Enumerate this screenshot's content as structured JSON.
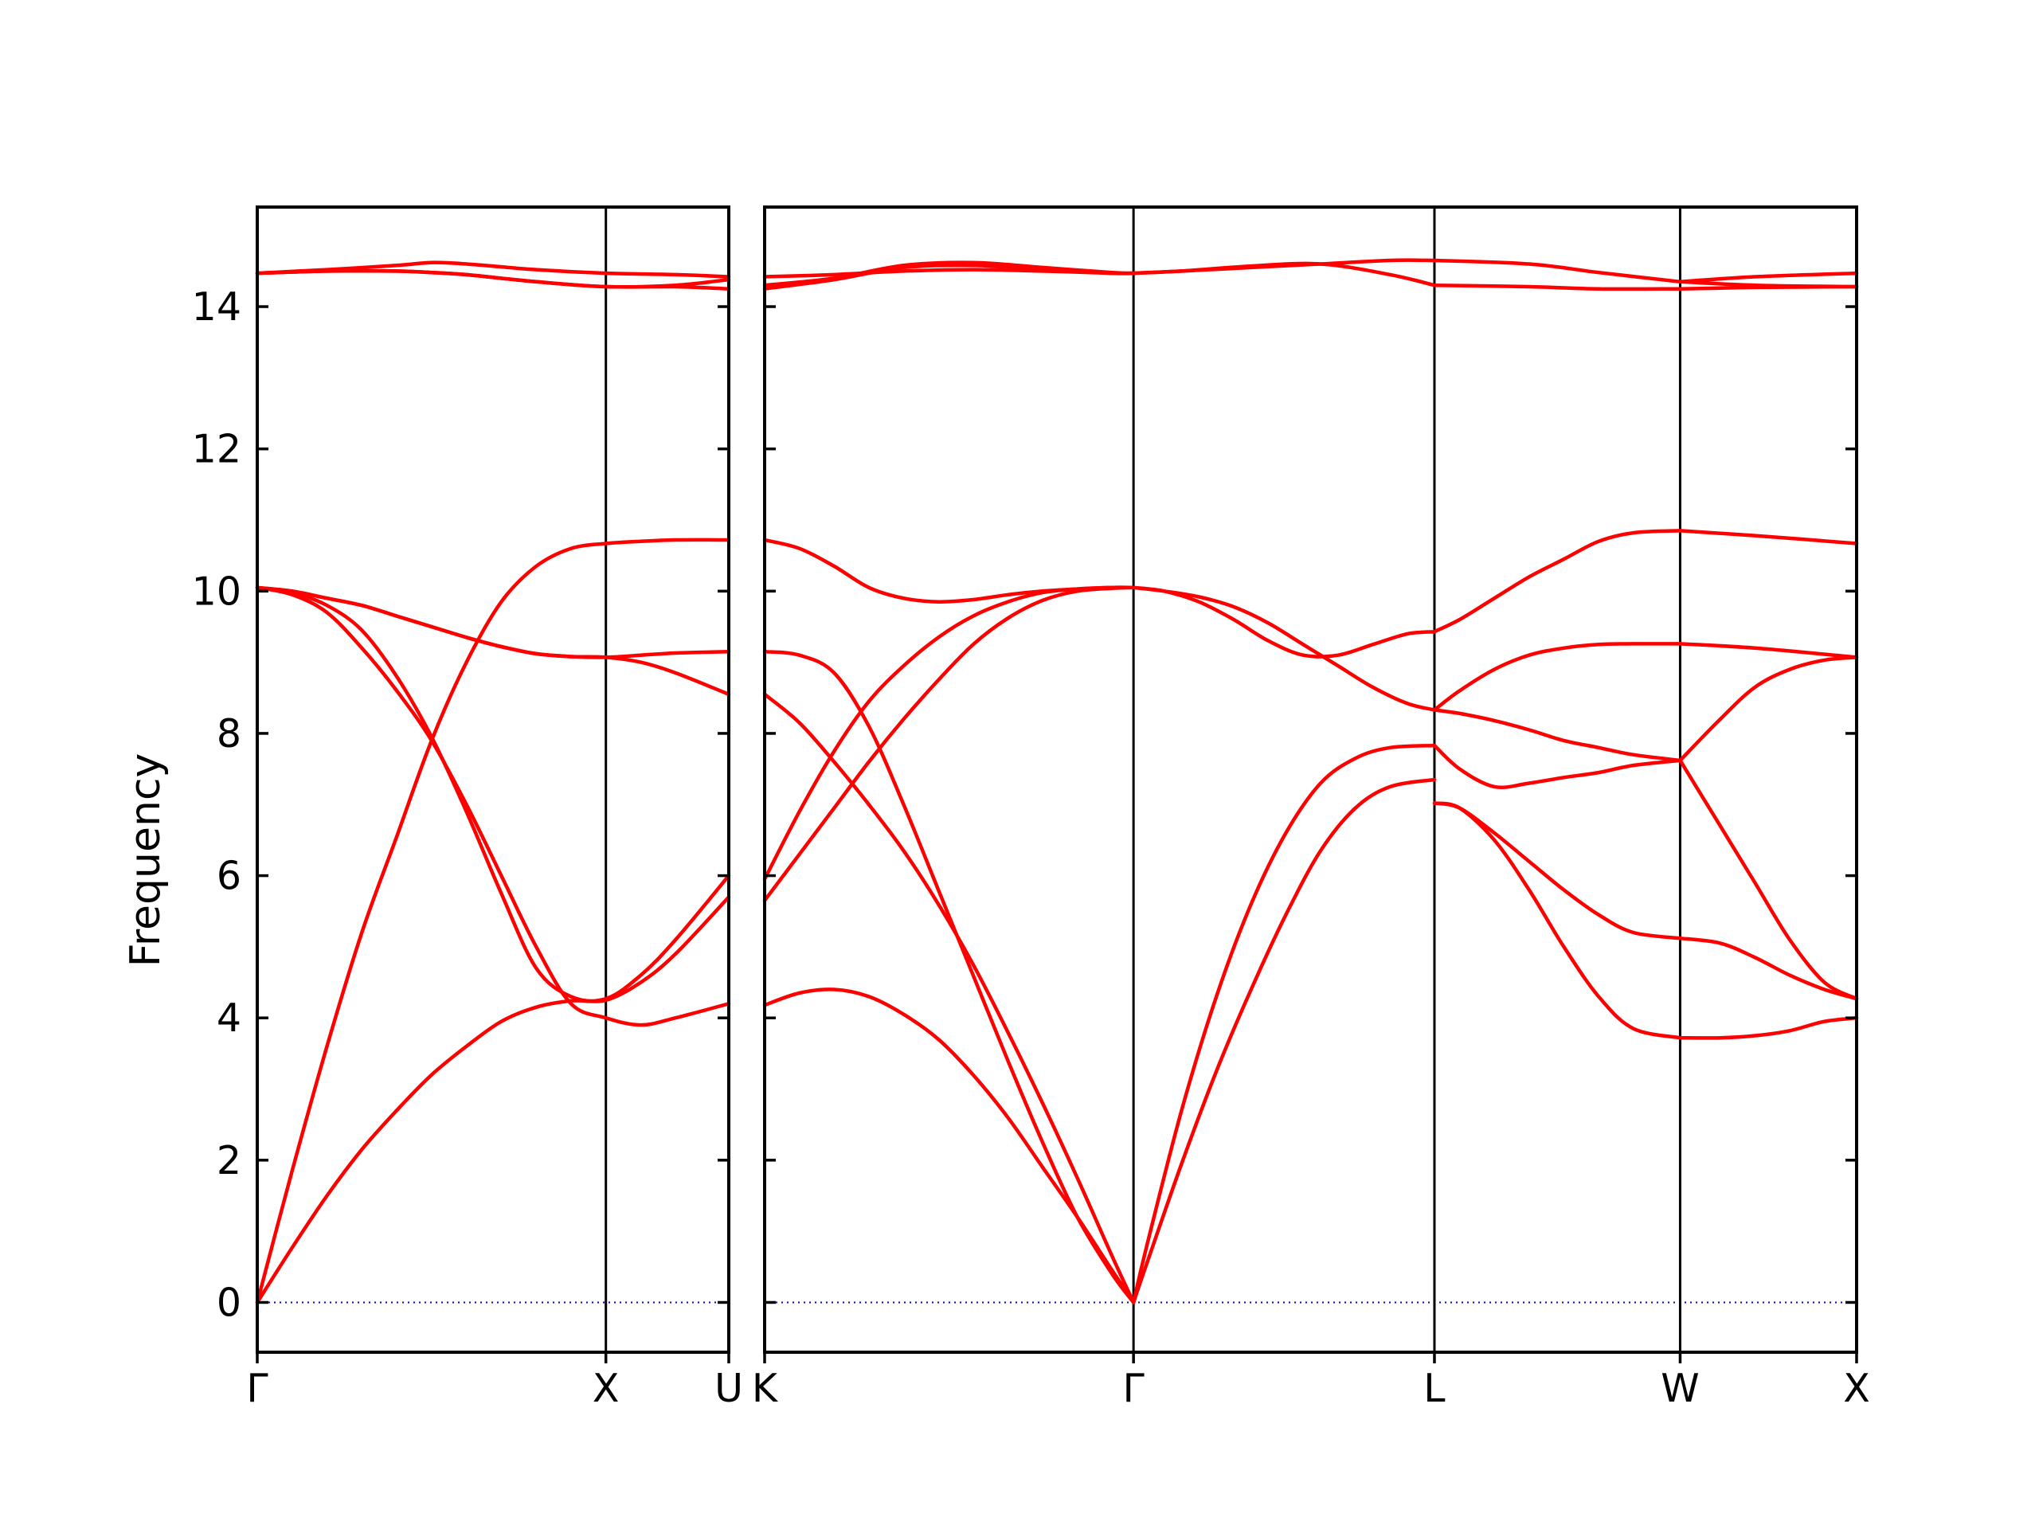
{
  "chart_data": {
    "type": "line",
    "title": "",
    "ylabel": "Frequency",
    "ylim": [
      -0.7,
      15.4
    ],
    "yticks": [
      0,
      2,
      4,
      6,
      8,
      10,
      12,
      14
    ],
    "grid": false,
    "legend": "none",
    "colors": {
      "bands": "#ff0000",
      "zero_line": "#0000cc",
      "axes": "#000000"
    },
    "segments": [
      {
        "name": "Γ-X-U",
        "xlim": [
          0,
          1.3525
        ],
        "kpoints": [
          {
            "label": "Γ",
            "x": 0
          },
          {
            "label": "X",
            "x": 1.0
          }
        ],
        "end_label": "U",
        "bands": [
          {
            "x": [
              0,
              0.1,
              0.2,
              0.3,
              0.4,
              0.5,
              0.6,
              0.7,
              0.8,
              0.9,
              1.0,
              1.1,
              1.2,
              1.3525
            ],
            "y": [
              0,
              0.77,
              1.5,
              2.15,
              2.7,
              3.2,
              3.6,
              3.95,
              4.15,
              4.24,
              4.25,
              4.5,
              4.9,
              5.7
            ]
          },
          {
            "x": [
              0,
              0.1,
              0.2,
              0.3,
              0.4,
              0.5,
              0.6,
              0.7,
              0.8,
              0.9,
              1.0,
              1.1,
              1.2,
              1.3525
            ],
            "y": [
              0,
              1.85,
              3.6,
              5.2,
              6.55,
              7.9,
              9.0,
              9.85,
              10.35,
              10.6,
              10.67,
              10.7,
              10.72,
              10.72
            ]
          },
          {
            "x": [
              0,
              0.1,
              0.2,
              0.3,
              0.4,
              0.5,
              0.6,
              0.7,
              0.8,
              0.9,
              1.0,
              1.1,
              1.2,
              1.3525
            ],
            "y": [
              10.05,
              9.95,
              9.7,
              9.2,
              8.6,
              7.9,
              7.0,
              6.0,
              5.0,
              4.2,
              4.0,
              3.9,
              4.0,
              4.2
            ]
          },
          {
            "x": [
              0,
              0.1,
              0.2,
              0.3,
              0.4,
              0.5,
              0.6,
              0.7,
              0.8,
              0.9,
              1.0,
              1.1,
              1.2,
              1.3525
            ],
            "y": [
              10.05,
              10.0,
              9.9,
              9.8,
              9.65,
              9.5,
              9.35,
              9.22,
              9.12,
              9.08,
              9.07,
              9.0,
              8.85,
              8.55
            ]
          },
          {
            "x": [
              0,
              0.1,
              0.2,
              0.3,
              0.4,
              0.5,
              0.6,
              0.7,
              0.8,
              0.9,
              1.0,
              1.1,
              1.2,
              1.3525
            ],
            "y": [
              10.05,
              10.0,
              9.9,
              9.8,
              9.65,
              9.5,
              9.35,
              9.22,
              9.12,
              9.08,
              9.07,
              9.1,
              9.13,
              9.15
            ]
          },
          {
            "x": [
              0,
              0.1,
              0.2,
              0.3,
              0.4,
              0.5,
              0.6,
              0.7,
              0.8,
              0.9,
              1.0,
              1.1,
              1.2,
              1.3525
            ],
            "y": [
              10.05,
              9.98,
              9.8,
              9.45,
              8.8,
              7.95,
              6.9,
              5.75,
              4.7,
              4.3,
              4.27,
              4.6,
              5.1,
              6.0
            ]
          },
          {
            "x": [
              0,
              0.2,
              0.4,
              0.5,
              0.6,
              0.8,
              1.0,
              1.2,
              1.3525
            ],
            "y": [
              14.47,
              14.52,
              14.58,
              14.62,
              14.6,
              14.52,
              14.47,
              14.45,
              14.42
            ]
          },
          {
            "x": [
              0,
              0.2,
              0.4,
              0.5,
              0.6,
              0.8,
              1.0,
              1.2,
              1.3525
            ],
            "y": [
              14.47,
              14.5,
              14.5,
              14.48,
              14.45,
              14.35,
              14.28,
              14.28,
              14.25
            ]
          },
          {
            "x": [
              0,
              0.2,
              0.4,
              0.5,
              0.6,
              0.8,
              1.0,
              1.2,
              1.3525
            ],
            "y": [
              14.47,
              14.5,
              14.5,
              14.48,
              14.45,
              14.35,
              14.28,
              14.3,
              14.38
            ]
          }
        ]
      },
      {
        "name": "K-Γ-L-W-X",
        "xlim": [
          0,
          3.1425
        ],
        "kpoints": [
          {
            "label": "K",
            "x": 0
          },
          {
            "label": "Γ",
            "x": 1.0616
          },
          {
            "label": "L",
            "x": 1.9276
          },
          {
            "label": "W",
            "x": 2.6347
          },
          {
            "label": "X",
            "x": 3.1425
          }
        ],
        "bands": [
          {
            "x": [
              0,
              0.1,
              0.2,
              0.3,
              0.4,
              0.5,
              0.6,
              0.7,
              0.8,
              0.9,
              1.0,
              1.0616
            ],
            "y": [
              4.18,
              4.35,
              4.4,
              4.3,
              4.05,
              3.7,
              3.2,
              2.6,
              1.9,
              1.2,
              0.45,
              0
            ]
          },
          {
            "x": [
              0,
              0.1,
              0.2,
              0.3,
              0.4,
              0.5,
              0.6,
              0.7,
              0.8,
              0.9,
              1.0,
              1.0616
            ],
            "y": [
              8.55,
              8.15,
              7.6,
              7.0,
              6.35,
              5.6,
              4.75,
              3.8,
              2.8,
              1.75,
              0.65,
              0
            ]
          },
          {
            "x": [
              0,
              0.1,
              0.2,
              0.3,
              0.4,
              0.5,
              0.6,
              0.7,
              0.8,
              0.9,
              1.0,
              1.0616
            ],
            "y": [
              9.15,
              9.1,
              8.85,
              8.1,
              7.0,
              5.8,
              4.6,
              3.4,
              2.25,
              1.2,
              0.4,
              0
            ]
          },
          {
            "x": [
              0,
              0.1,
              0.2,
              0.3,
              0.4,
              0.5,
              0.6,
              0.7,
              0.8,
              0.9,
              1.0,
              1.0616
            ],
            "y": [
              5.65,
              6.3,
              6.95,
              7.6,
              8.2,
              8.75,
              9.25,
              9.62,
              9.87,
              10.0,
              10.04,
              10.05
            ]
          },
          {
            "x": [
              0,
              0.1,
              0.2,
              0.3,
              0.4,
              0.5,
              0.6,
              0.7,
              0.8,
              0.9,
              1.0,
              1.0616
            ],
            "y": [
              5.95,
              6.9,
              7.75,
              8.45,
              8.95,
              9.35,
              9.65,
              9.85,
              9.98,
              10.03,
              10.05,
              10.05
            ]
          },
          {
            "x": [
              0,
              0.1,
              0.2,
              0.3,
              0.4,
              0.5,
              0.6,
              0.7,
              0.8,
              0.9,
              1.0,
              1.0616
            ],
            "y": [
              10.72,
              10.6,
              10.35,
              10.05,
              9.9,
              9.85,
              9.88,
              9.95,
              10.0,
              10.03,
              10.05,
              10.05
            ]
          },
          {
            "x": [
              0,
              0.2,
              0.4,
              0.6,
              0.8,
              1.0,
              1.0616
            ],
            "y": [
              14.3,
              14.4,
              14.58,
              14.62,
              14.55,
              14.48,
              14.47
            ]
          },
          {
            "x": [
              0,
              0.2,
              0.4,
              0.6,
              0.8,
              1.0,
              1.0616
            ],
            "y": [
              14.25,
              14.38,
              14.55,
              14.58,
              14.52,
              14.47,
              14.47
            ]
          },
          {
            "x": [
              0,
              0.2,
              0.4,
              0.6,
              0.8,
              1.0,
              1.0616
            ],
            "y": [
              14.42,
              14.45,
              14.5,
              14.52,
              14.5,
              14.47,
              14.47
            ]
          },
          {
            "x": [
              1.0616,
              1.1,
              1.2,
              1.3,
              1.4,
              1.5,
              1.6,
              1.7,
              1.8,
              1.9276
            ],
            "y": [
              0,
              0.55,
              1.95,
              3.25,
              4.4,
              5.45,
              6.35,
              6.95,
              7.25,
              7.35
            ]
          },
          {
            "x": [
              1.0616,
              1.1,
              1.2,
              1.3,
              1.4,
              1.5,
              1.6,
              1.7,
              1.8,
              1.9276
            ],
            "y": [
              0,
              0.8,
              2.7,
              4.3,
              5.6,
              6.6,
              7.3,
              7.65,
              7.8,
              7.83
            ]
          },
          {
            "x": [
              1.0616,
              1.15,
              1.25,
              1.35,
              1.45,
              1.55,
              1.65,
              1.75,
              1.85,
              1.9276
            ],
            "y": [
              10.05,
              10.0,
              9.85,
              9.6,
              9.3,
              9.1,
              9.1,
              9.25,
              9.4,
              9.43
            ]
          },
          {
            "x": [
              1.0616,
              1.15,
              1.25,
              1.35,
              1.45,
              1.55,
              1.65,
              1.75,
              1.85,
              1.9276
            ],
            "y": [
              10.05,
              10.0,
              9.92,
              9.78,
              9.55,
              9.25,
              8.95,
              8.65,
              8.42,
              8.33
            ]
          },
          {
            "x": [
              1.0616,
              1.2,
              1.4,
              1.6,
              1.8,
              1.9276
            ],
            "y": [
              14.47,
              14.5,
              14.57,
              14.6,
              14.45,
              14.3
            ]
          },
          {
            "x": [
              1.0616,
              1.2,
              1.4,
              1.6,
              1.8,
              1.9276
            ],
            "y": [
              14.47,
              14.5,
              14.55,
              14.6,
              14.65,
              14.65
            ]
          },
          {
            "x": [
              1.9276,
              2.0,
              2.1,
              2.2,
              2.3,
              2.4,
              2.5,
              2.6347
            ],
            "y": [
              7.02,
              6.95,
              6.6,
              6.2,
              5.8,
              5.45,
              5.2,
              5.12
            ]
          },
          {
            "x": [
              1.9276,
              2.0,
              2.1,
              2.2,
              2.3,
              2.4,
              2.5,
              2.6347
            ],
            "y": [
              7.02,
              6.95,
              6.5,
              5.8,
              5.0,
              4.3,
              3.85,
              3.72
            ]
          },
          {
            "x": [
              1.9276,
              2.0,
              2.1,
              2.2,
              2.3,
              2.4,
              2.5,
              2.6347
            ],
            "y": [
              7.83,
              7.5,
              7.25,
              7.3,
              7.38,
              7.45,
              7.55,
              7.62
            ]
          },
          {
            "x": [
              1.9276,
              2.0,
              2.1,
              2.2,
              2.3,
              2.4,
              2.5,
              2.6347
            ],
            "y": [
              8.33,
              8.28,
              8.18,
              8.05,
              7.9,
              7.8,
              7.7,
              7.62
            ]
          },
          {
            "x": [
              1.9276,
              2.0,
              2.1,
              2.2,
              2.3,
              2.4,
              2.5,
              2.6347
            ],
            "y": [
              8.33,
              8.6,
              8.9,
              9.1,
              9.2,
              9.25,
              9.26,
              9.26
            ]
          },
          {
            "x": [
              1.9276,
              2.0,
              2.1,
              2.2,
              2.3,
              2.4,
              2.5,
              2.6347
            ],
            "y": [
              9.43,
              9.6,
              9.9,
              10.2,
              10.45,
              10.7,
              10.82,
              10.85
            ]
          },
          {
            "x": [
              1.9276,
              2.2,
              2.4,
              2.6347
            ],
            "y": [
              14.3,
              14.28,
              14.25,
              14.25
            ]
          },
          {
            "x": [
              1.9276,
              2.2,
              2.4,
              2.6347
            ],
            "y": [
              14.65,
              14.6,
              14.48,
              14.35
            ]
          },
          {
            "x": [
              2.6347,
              2.75,
              2.85,
              2.95,
              3.05,
              3.1425
            ],
            "y": [
              3.72,
              3.72,
              3.75,
              3.82,
              3.95,
              4.0
            ]
          },
          {
            "x": [
              2.6347,
              2.75,
              2.85,
              2.95,
              3.05,
              3.1425
            ],
            "y": [
              5.12,
              5.05,
              4.85,
              4.6,
              4.4,
              4.27
            ]
          },
          {
            "x": [
              2.6347,
              2.75,
              2.85,
              2.95,
              3.05,
              3.1425
            ],
            "y": [
              7.62,
              6.7,
              5.9,
              5.1,
              4.5,
              4.27
            ]
          },
          {
            "x": [
              2.6347,
              2.75,
              2.85,
              2.95,
              3.05,
              3.1425
            ],
            "y": [
              7.62,
              8.2,
              8.65,
              8.9,
              9.03,
              9.07
            ]
          },
          {
            "x": [
              2.6347,
              2.85,
              3.1425
            ],
            "y": [
              9.26,
              9.2,
              9.07
            ]
          },
          {
            "x": [
              2.6347,
              2.85,
              3.1425
            ],
            "y": [
              10.85,
              10.78,
              10.67
            ]
          },
          {
            "x": [
              2.6347,
              2.85,
              3.1425
            ],
            "y": [
              14.35,
              14.42,
              14.47
            ]
          },
          {
            "x": [
              2.6347,
              2.85,
              3.1425
            ],
            "y": [
              14.35,
              14.3,
              14.28
            ]
          },
          {
            "x": [
              2.6347,
              2.85,
              3.1425
            ],
            "y": [
              14.25,
              14.27,
              14.28
            ]
          }
        ]
      }
    ]
  }
}
